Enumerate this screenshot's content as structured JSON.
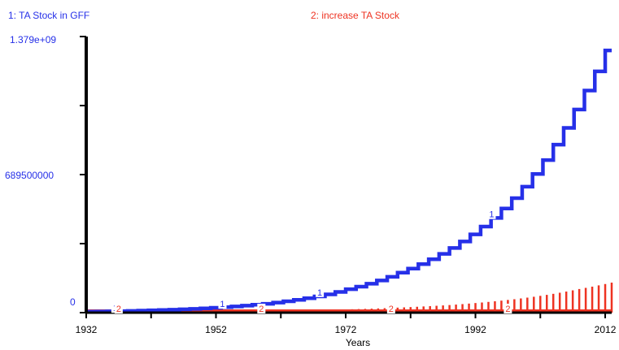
{
  "chart_data": {
    "type": "line",
    "title": "",
    "xlabel": "Years",
    "ylabel": "",
    "xlim": [
      1932,
      2013
    ],
    "ylim": [
      0,
      1379000000
    ],
    "x_ticks": [
      "1932",
      "1952",
      "1972",
      "1992",
      "2012"
    ],
    "y_ticks": [
      "0",
      "689500000",
      "1.379e+09"
    ],
    "colors": {
      "series1": "#2630e8",
      "series2": "#ee3322",
      "axis": "#000000"
    },
    "legend_placement": "top",
    "series": [
      {
        "name": "1: TA Stock in GFF",
        "marker": "1",
        "style": "step",
        "x": [
          1932,
          1936,
          1940,
          1944,
          1948,
          1952,
          1956,
          1960,
          1964,
          1968,
          1972,
          1976,
          1980,
          1984,
          1988,
          1992,
          1996,
          2000,
          2004,
          2008,
          2013
        ],
        "values": [
          5000000,
          7000000,
          10000000,
          14000000,
          19000000,
          26000000,
          35000000,
          47000000,
          64000000,
          86000000,
          117000000,
          152000000,
          200000000,
          254000000,
          323000000,
          410000000,
          520000000,
          660000000,
          839000000,
          1064000000,
          1379000000
        ]
      },
      {
        "name": "2: increase TA Stock",
        "marker": "2",
        "style": "bars",
        "x": [
          1932,
          1936,
          1940,
          1944,
          1948,
          1952,
          1956,
          1960,
          1964,
          1968,
          1972,
          1976,
          1980,
          1984,
          1988,
          1992,
          1996,
          2000,
          2004,
          2008,
          2013
        ],
        "values": [
          2000000,
          2500000,
          3000000,
          3600000,
          4500000,
          5500000,
          6800000,
          8500000,
          10500000,
          13000000,
          16000000,
          20000000,
          25000000,
          31000000,
          38000000,
          48000000,
          60000000,
          75000000,
          94000000,
          118000000,
          150000000
        ]
      }
    ],
    "marker_positions_x": [
      1936.5,
      1953,
      1968,
      1994.5
    ],
    "marker2_positions_x": [
      1937,
      1959,
      1979,
      1997
    ]
  }
}
